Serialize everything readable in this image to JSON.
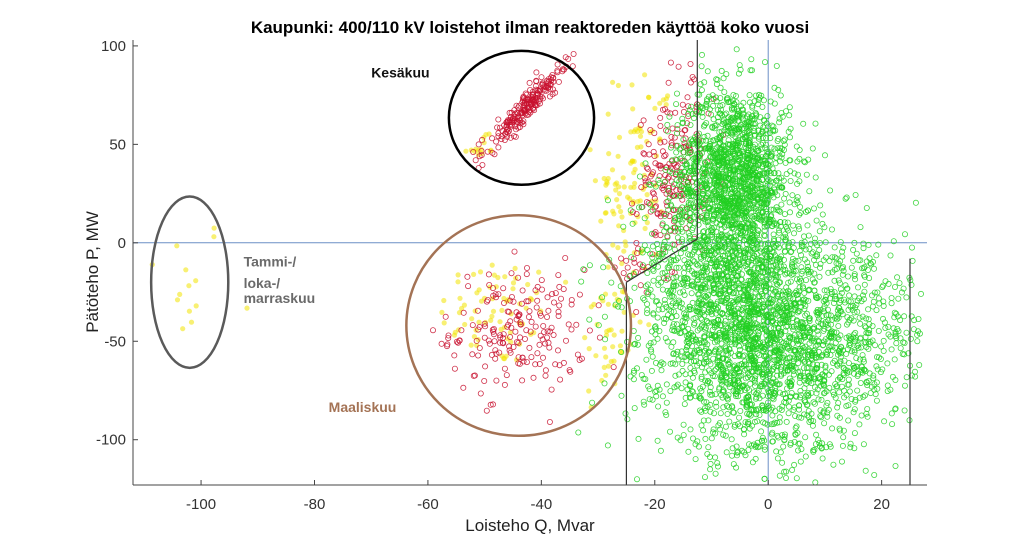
{
  "chart_data": {
    "type": "scatter",
    "title": "Kaupunki: 400/110 kV loistehot ilman reaktoreden käyttöä koko vuosi",
    "xlabel": "Loisteho Q, Mvar",
    "ylabel": "Pätöteho P, MW",
    "xlim": [
      -112,
      28
    ],
    "ylim": [
      -123,
      103
    ],
    "x_ticks": [
      -100,
      -80,
      -60,
      -40,
      -20,
      0,
      20
    ],
    "y_ticks": [
      -100,
      -50,
      0,
      50,
      100
    ],
    "grid": false,
    "reference_lines": {
      "horizontal_y": 0,
      "vertical_x": 0,
      "color": "#6b8fc6"
    },
    "boundary_lines": [
      {
        "points": [
          [
            -12.5,
            103
          ],
          [
            -12.5,
            2
          ]
        ],
        "color": "#333333"
      },
      {
        "points": [
          [
            -12.5,
            2
          ],
          [
            -25,
            -20
          ]
        ],
        "color": "#333333"
      },
      {
        "points": [
          [
            -25,
            -20
          ],
          [
            -25,
            -123
          ]
        ],
        "color": "#333333"
      },
      {
        "points": [
          [
            25,
            -123
          ],
          [
            25,
            -8
          ]
        ],
        "color": "#333333"
      }
    ],
    "series": [
      {
        "color": "#f2e400",
        "marker": "circle-filled",
        "clusters": [
          {
            "cx": -103,
            "cy": -20,
            "sx": 4,
            "sy": 18,
            "n": 14
          },
          {
            "cx": -48,
            "cy": -35,
            "sx": 5,
            "sy": 14,
            "n": 70
          },
          {
            "cx": -28,
            "cy": -45,
            "sx": 3,
            "sy": 22,
            "n": 45
          },
          {
            "cx": -24,
            "cy": 25,
            "sx": 3,
            "sy": 22,
            "n": 90
          },
          {
            "cx": -51,
            "cy": 48,
            "sx": 2,
            "sy": 3,
            "n": 14
          },
          {
            "cx": -22,
            "cy": 72,
            "sx": 2.5,
            "sy": 8,
            "n": 16
          }
        ]
      },
      {
        "color": "#c8102e",
        "marker": "circle-open",
        "clusters": [
          {
            "cx": -44,
            "cy": -45,
            "sx": 6,
            "sy": 16,
            "n": 190
          },
          {
            "cx": -17,
            "cy": 32,
            "sx": 3,
            "sy": 17,
            "n": 170
          },
          {
            "cx": -22,
            "cy": -12,
            "sx": 2.5,
            "sy": 6,
            "n": 25
          },
          {
            "cx": -14,
            "cy": 75,
            "sx": 1.5,
            "sy": 10,
            "n": 16
          },
          {
            "cx": -43,
            "cy": 68,
            "sx": 3.5,
            "sy": 6,
            "diagonal": true,
            "n": 210
          }
        ]
      },
      {
        "color": "#22d022",
        "marker": "circle-open",
        "clusters": [
          {
            "cx": -6,
            "cy": 35,
            "sx": 5,
            "sy": 22,
            "n": 1400
          },
          {
            "cx": -1,
            "cy": -55,
            "sx": 9,
            "sy": 28,
            "n": 1600
          },
          {
            "cx": -8,
            "cy": -20,
            "sx": 8,
            "sy": 26,
            "n": 900
          },
          {
            "cx": 14,
            "cy": -45,
            "sx": 6,
            "sy": 30,
            "n": 350
          },
          {
            "cx": 24,
            "cy": -40,
            "sx": 1.5,
            "sy": 15,
            "n": 35
          }
        ]
      }
    ],
    "annotations": [
      {
        "type": "ellipse",
        "cx": -102,
        "cy": -20,
        "rx": 6.8,
        "ry": 43.5,
        "color": "#5a5a5a"
      },
      {
        "type": "ellipse",
        "cx": -44,
        "cy": -42,
        "rx": 19.8,
        "ry": 56,
        "color": "#a47355"
      },
      {
        "type": "ellipse",
        "cx": -43.5,
        "cy": 63.5,
        "rx": 12.8,
        "ry": 34,
        "color": "#000000"
      }
    ],
    "annotation_labels": [
      {
        "text": "Kesäkuu",
        "x": -70,
        "y": 84,
        "color": "#111111"
      },
      {
        "text": "Tammi-/",
        "x": -92.5,
        "y": -12,
        "color": "#6a6a6a"
      },
      {
        "text": "loka-/",
        "x": -92.5,
        "y": -23,
        "color": "#6a6a6a"
      },
      {
        "text": "marraskuu",
        "x": -92.5,
        "y": -30.5,
        "color": "#6a6a6a"
      },
      {
        "text": "Maaliskuu",
        "x": -77.5,
        "y": -86,
        "color": "#a47355"
      }
    ]
  }
}
